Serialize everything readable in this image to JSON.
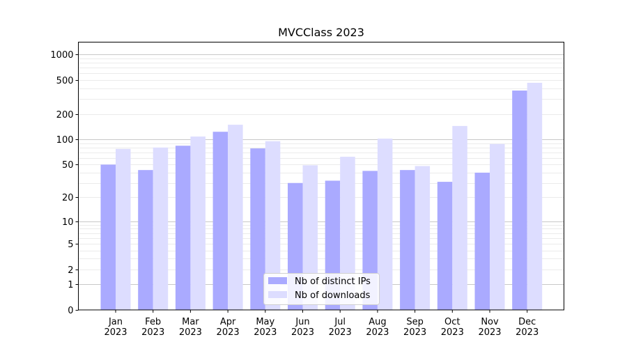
{
  "chart_data": {
    "type": "bar",
    "title": "MVCClass 2023",
    "xlabel": "",
    "ylabel": "",
    "yscale": "log(1+y)",
    "ylim": [
      0,
      1300
    ],
    "yticks": [
      0,
      1,
      2,
      5,
      10,
      20,
      50,
      100,
      200,
      500,
      1000
    ],
    "grid": true,
    "legend_position": "lower-center",
    "categories": [
      "Jan\n2023",
      "Feb\n2023",
      "Mar\n2023",
      "Apr\n2023",
      "May\n2023",
      "Jun\n2023",
      "Jul\n2023",
      "Aug\n2023",
      "Sep\n2023",
      "Oct\n2023",
      "Nov\n2023",
      "Dec\n2023"
    ],
    "series": [
      {
        "name": "Nb of distinct IPs",
        "color": "#aaaaff",
        "values": [
          50,
          43,
          84,
          123,
          78,
          30,
          32,
          42,
          43,
          31,
          40,
          377
        ]
      },
      {
        "name": "Nb of downloads",
        "color": "#ddddff",
        "values": [
          77,
          80,
          108,
          149,
          95,
          49,
          62,
          102,
          48,
          144,
          88,
          465
        ]
      }
    ]
  }
}
